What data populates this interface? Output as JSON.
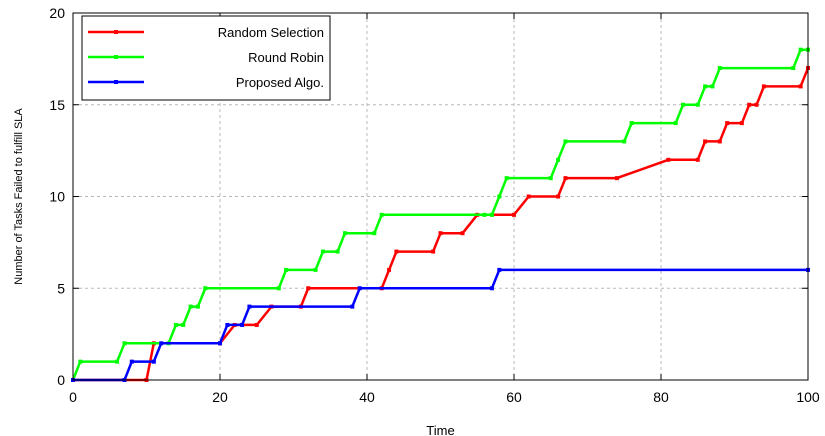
{
  "chart_data": {
    "type": "line",
    "title": "",
    "xlabel": "Time",
    "ylabel": "Number of Tasks Failed to fulfill SLA",
    "xlim": [
      0,
      100
    ],
    "ylim": [
      0,
      20
    ],
    "xticks": [
      0,
      20,
      40,
      60,
      80,
      100
    ],
    "yticks": [
      0,
      5,
      10,
      15,
      20
    ],
    "grid": true,
    "legend_position": "top-left",
    "series": [
      {
        "name": "Random Selection",
        "color": "#ff0000",
        "points": [
          [
            0,
            0
          ],
          [
            10,
            0
          ],
          [
            11,
            2
          ],
          [
            20,
            2
          ],
          [
            22,
            3
          ],
          [
            25,
            3
          ],
          [
            27,
            4
          ],
          [
            31,
            4
          ],
          [
            32,
            5
          ],
          [
            42,
            5
          ],
          [
            43,
            6
          ],
          [
            44,
            7
          ],
          [
            49,
            7
          ],
          [
            50,
            8
          ],
          [
            53,
            8
          ],
          [
            55,
            9
          ],
          [
            60,
            9
          ],
          [
            62,
            10
          ],
          [
            66,
            10
          ],
          [
            67,
            11
          ],
          [
            74,
            11
          ],
          [
            81,
            12
          ],
          [
            85,
            12
          ],
          [
            86,
            13
          ],
          [
            88,
            13
          ],
          [
            89,
            14
          ],
          [
            91,
            14
          ],
          [
            92,
            15
          ],
          [
            93,
            15
          ],
          [
            94,
            16
          ],
          [
            99,
            16
          ],
          [
            100,
            17
          ]
        ]
      },
      {
        "name": "Round Robin",
        "color": "#00ff00",
        "points": [
          [
            0,
            0
          ],
          [
            1,
            1
          ],
          [
            6,
            1
          ],
          [
            7,
            2
          ],
          [
            13,
            2
          ],
          [
            14,
            3
          ],
          [
            15,
            3
          ],
          [
            16,
            4
          ],
          [
            17,
            4
          ],
          [
            18,
            5
          ],
          [
            28,
            5
          ],
          [
            29,
            6
          ],
          [
            33,
            6
          ],
          [
            34,
            7
          ],
          [
            36,
            7
          ],
          [
            37,
            8
          ],
          [
            41,
            8
          ],
          [
            42,
            9
          ],
          [
            56,
            9
          ],
          [
            57,
            9
          ],
          [
            58,
            10
          ],
          [
            59,
            11
          ],
          [
            65,
            11
          ],
          [
            66,
            12
          ],
          [
            67,
            13
          ],
          [
            75,
            13
          ],
          [
            76,
            14
          ],
          [
            82,
            14
          ],
          [
            83,
            15
          ],
          [
            85,
            15
          ],
          [
            86,
            16
          ],
          [
            87,
            16
          ],
          [
            88,
            17
          ],
          [
            98,
            17
          ],
          [
            99,
            18
          ],
          [
            100,
            18
          ]
        ]
      },
      {
        "name": "Proposed Algo.",
        "color": "#0000ff",
        "points": [
          [
            0,
            0
          ],
          [
            7,
            0
          ],
          [
            8,
            1
          ],
          [
            11,
            1
          ],
          [
            12,
            2
          ],
          [
            20,
            2
          ],
          [
            21,
            3
          ],
          [
            23,
            3
          ],
          [
            24,
            4
          ],
          [
            38,
            4
          ],
          [
            39,
            5
          ],
          [
            57,
            5
          ],
          [
            58,
            6
          ],
          [
            100,
            6
          ]
        ]
      }
    ]
  }
}
